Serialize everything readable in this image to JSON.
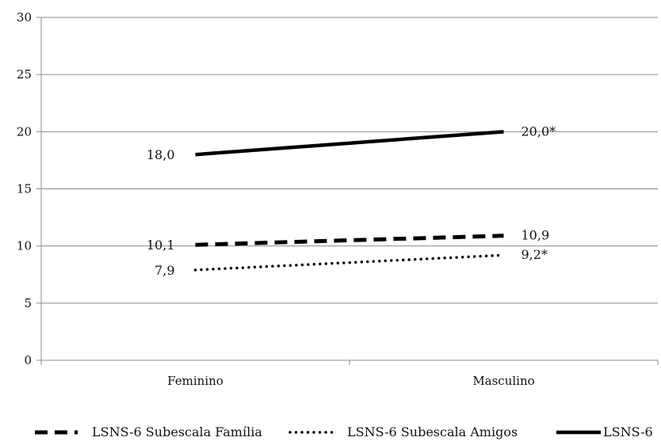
{
  "chart_data": {
    "type": "line",
    "categories": [
      "Feminino",
      "Masculino"
    ],
    "ylim": [
      0,
      30
    ],
    "yticks": [
      0,
      5,
      10,
      15,
      20,
      25,
      30
    ],
    "grid": "horizontal",
    "legend_position": "bottom",
    "series": [
      {
        "name": "LSNS-6 Subescala Família",
        "values": [
          10.1,
          10.9
        ],
        "labels": [
          "10,1",
          "10,9"
        ],
        "style": "dashed",
        "color": "#000000"
      },
      {
        "name": "LSNS-6 Subescala Amigos",
        "values": [
          7.9,
          9.2
        ],
        "labels": [
          "7,9",
          "9,2*"
        ],
        "style": "dotted",
        "color": "#000000"
      },
      {
        "name": "LSNS-6",
        "values": [
          18.0,
          20.0
        ],
        "labels": [
          "18,0",
          "20,0*"
        ],
        "style": "solid",
        "color": "#000000"
      }
    ]
  }
}
